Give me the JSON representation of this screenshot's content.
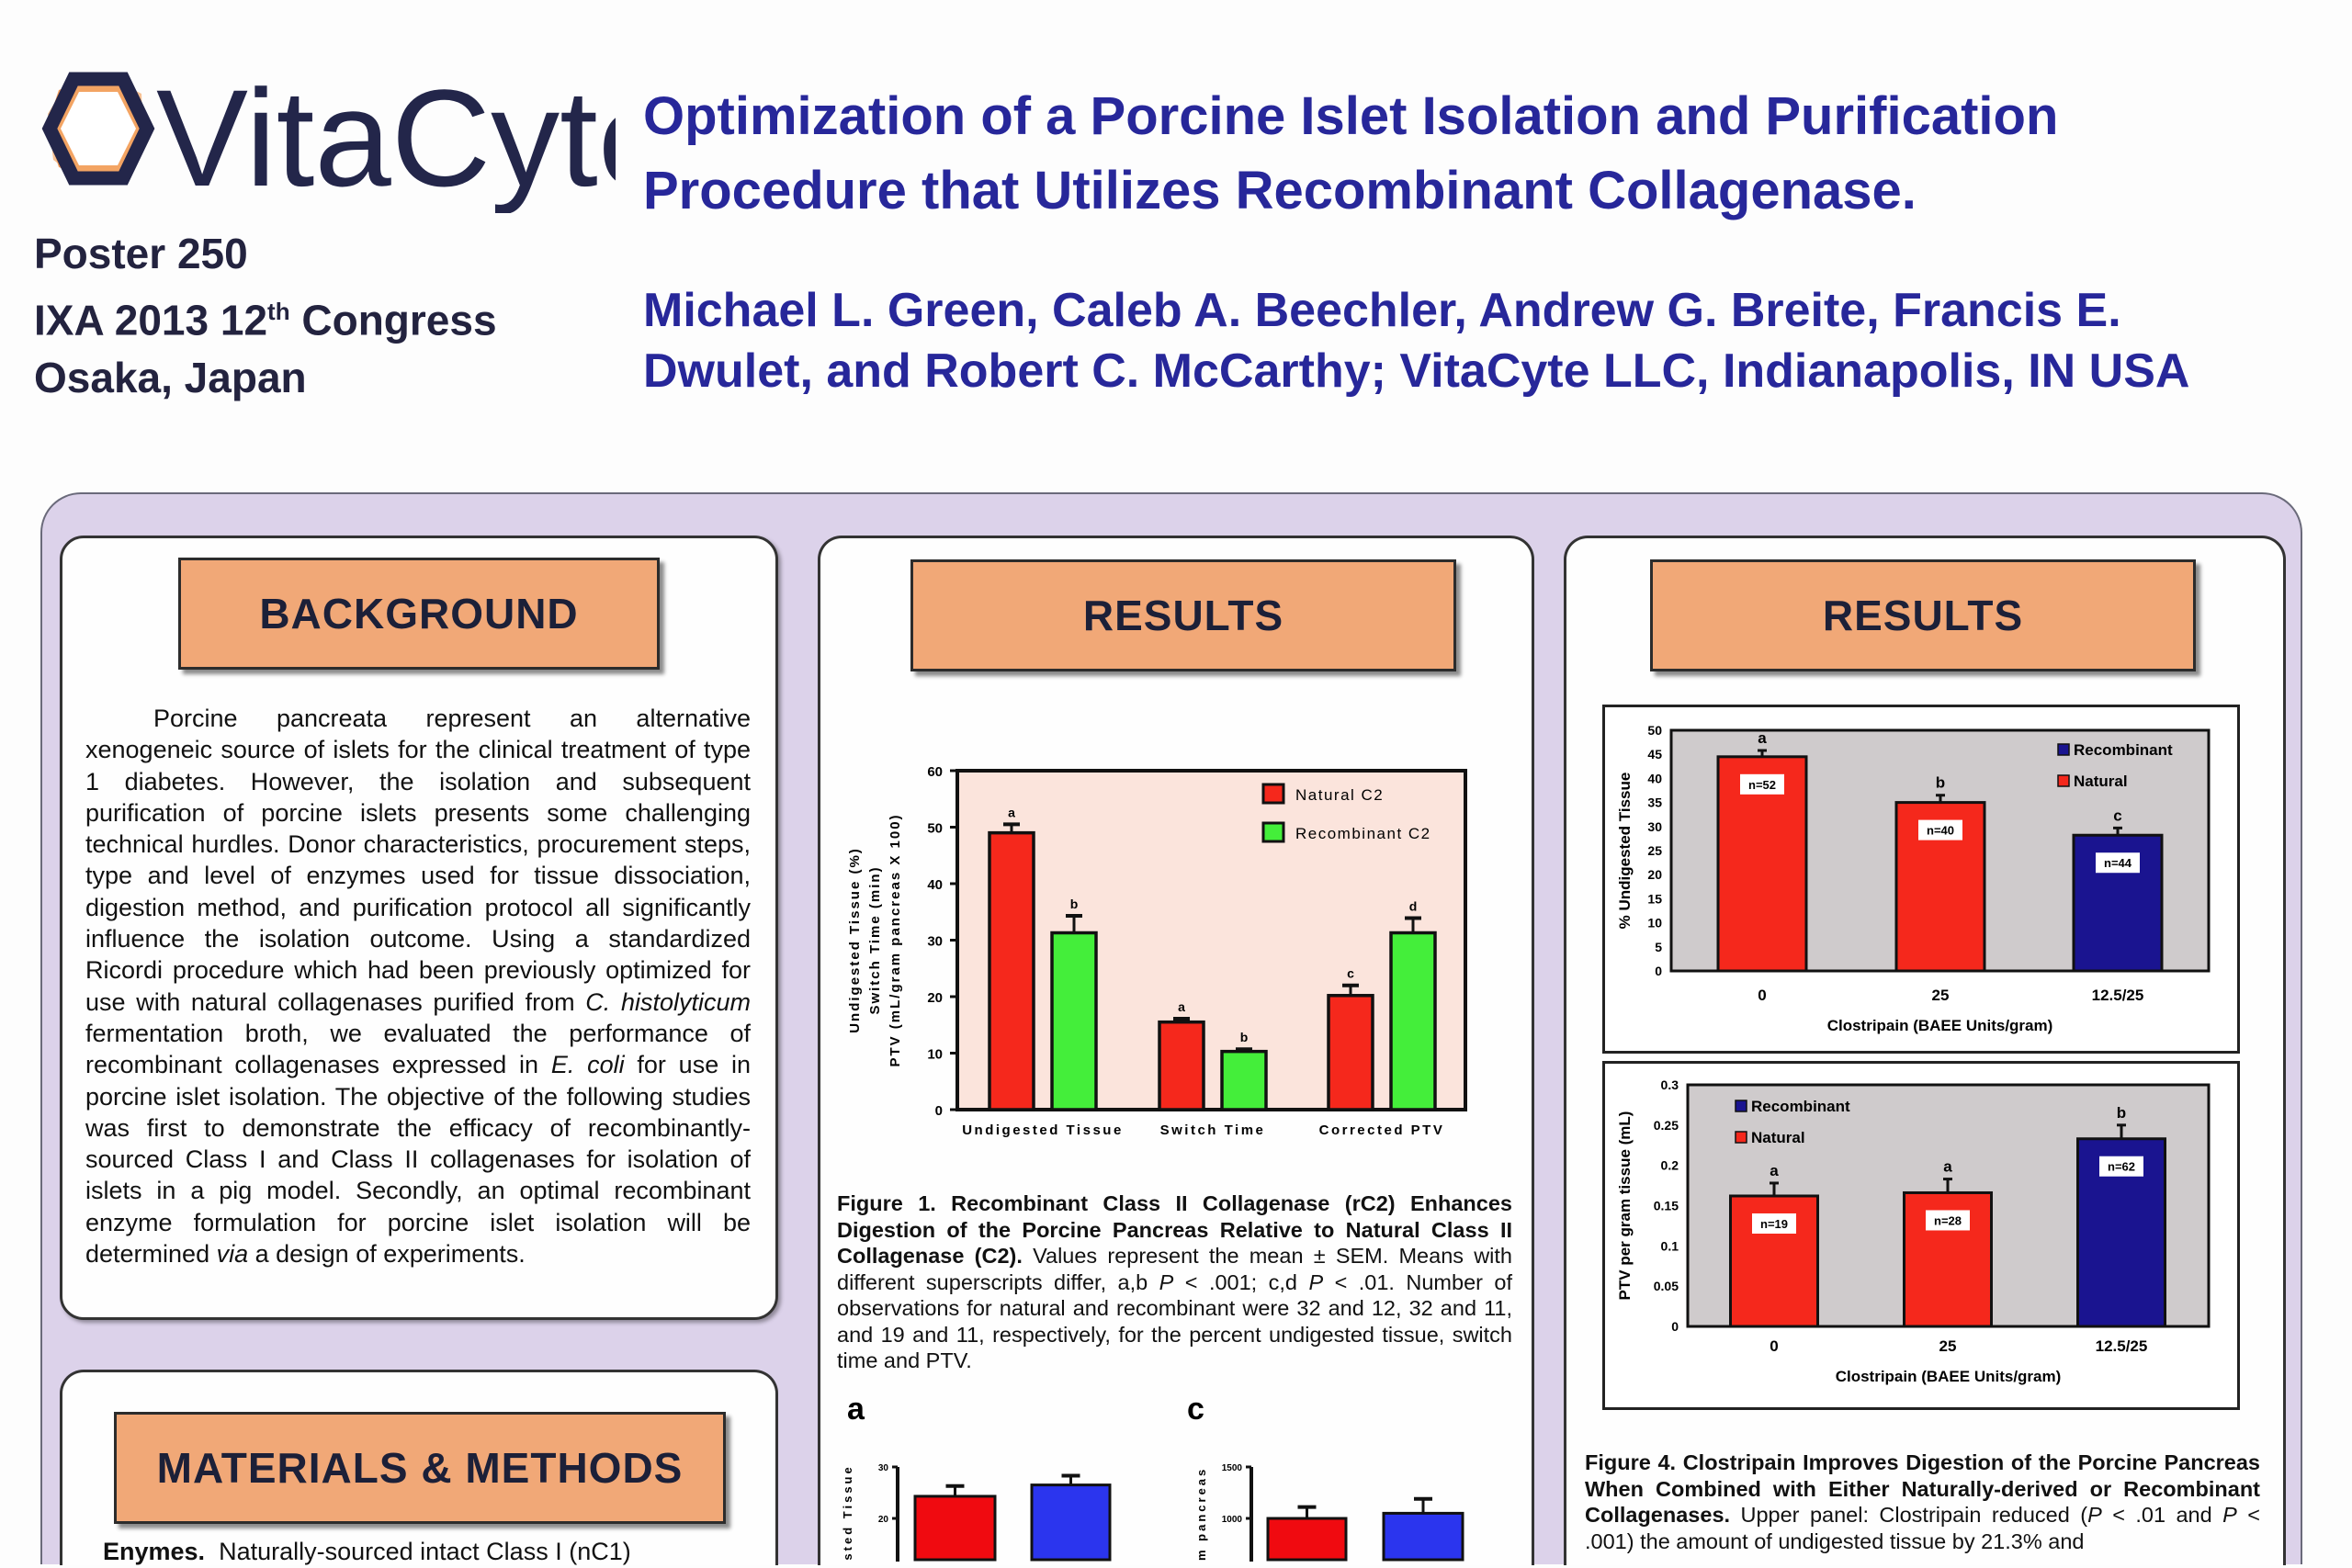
{
  "header": {
    "logo_text": "VitaCyte",
    "poster_number": "Poster 250",
    "congress_prefix": "IXA 2013 12",
    "congress_sup": "th",
    "congress_suffix": " Congress",
    "location": "Osaka, Japan",
    "title_lines": [
      "Optimization of a Porcine Islet Isolation and Purification",
      "Procedure that Utilizes Recombinant Collagenase."
    ],
    "author_lines": [
      "Michael L. Green, Caleb A. Beechler, Andrew G. Breite, Francis E.",
      "Dwulet, and Robert C. McCarthy; VitaCyte LLC, Indianapolis, IN USA"
    ]
  },
  "colors": {
    "title": "#27279a",
    "panel": "#dcd2ea",
    "section_header": "#f1a877",
    "natural": "#f5281c",
    "recombinant_green": "#44ee3a",
    "recombinant_blue": "#1a1490",
    "small_blue": "#2b35ee"
  },
  "background": {
    "heading": "BACKGROUND",
    "segments": [
      "Porcine pancreata represent an alternative xenogeneic source of islets for the clinical treatment of type 1 diabetes.  However, the isolation and subsequent purification of porcine islets presents some challenging technical hurdles.  Donor characteristics, procurement steps, type and level of enzymes used for tissue dissociation, digestion method, and purification protocol all significantly influence the isolation outcome. Using a standardized Ricordi procedure which had been previously optimized for use with natural collagenases purified from ",
      "C. histolyticum",
      " fermentation broth, we evaluated the performance of recombinant collagenases expressed in ",
      "E. coli",
      " for use in porcine islet isolation. The objective of the  following studies was first to demonstrate the efficacy of  recombinantly-sourced Class I and Class II collagenases  for isolation of islets in a pig model.  Secondly, an optimal recombinant enzyme formulation for porcine islet isolation will be determined ",
      "via",
      " a design of experiments."
    ]
  },
  "methods": {
    "heading": "MATERIALS & METHODS",
    "lead_bold": "Enymes.",
    "lead_text": "  Naturally-sourced intact Class I (nC1)"
  },
  "results_middle": {
    "heading": "RESULTS",
    "figure1_caption": {
      "bold": "Figure 1.  Recombinant Class II Collagenase (rC2) Enhances Digestion of the Porcine Pancreas Relative to Natural Class II Collagenase (C2).",
      "t1": " Values represent the mean ± SEM.  Means with different superscripts differ, a,b ",
      "p": "P",
      "t2": " < .001; c,d ",
      "t3": " < .01. Number of observations for natural and recombinant were 32 and 12, 32 and 11, and 19 and 11, respectively, for the percent undigested tissue, switch time and PTV."
    },
    "panel_a_label": "a",
    "panel_c_label": "c"
  },
  "results_right": {
    "heading": "RESULTS",
    "figure4_caption": {
      "bold": "Figure 4. Clostripain Improves Digestion of the Porcine Pancreas When Combined with Either Naturally-derived or Recombinant Collagenases.",
      "t1": "  Upper panel: Clostripain reduced (",
      "p": "P",
      "t2": " < .01 and ",
      "t3": " < .001) the amount of undigested tissue by 21.3% and"
    }
  },
  "chart_data": [
    {
      "id": "figure1",
      "type": "bar",
      "categories": [
        "Undigested Tissue",
        "Switch Time",
        "Corrected PTV"
      ],
      "series": [
        {
          "name": "Natural C2",
          "values": [
            49,
            15.5,
            20.2
          ],
          "errors": [
            1.5,
            0.6,
            1.8
          ],
          "letters": [
            "a",
            "a",
            "c"
          ]
        },
        {
          "name": "Recombinant C2",
          "values": [
            31.3,
            10.3,
            31.3
          ],
          "errors": [
            3.0,
            0.4,
            2.6
          ],
          "letters": [
            "b",
            "b",
            "d"
          ]
        }
      ],
      "ylabel_lines": [
        "Undigested Tissue (%)",
        "Switch Time (min)",
        "PTV (mL/gram pancreas X 100)"
      ],
      "ylim": [
        0,
        60
      ],
      "yticks": [
        0,
        10,
        20,
        30,
        40,
        50,
        60
      ],
      "legend": "top-right"
    },
    {
      "id": "figure4_upper",
      "type": "bar",
      "categories": [
        "0",
        "25",
        "12.5/25"
      ],
      "values": [
        44.5,
        35,
        28.2
      ],
      "errors": [
        1.3,
        1.5,
        1.5
      ],
      "letters": [
        "a",
        "b",
        "c"
      ],
      "n_labels": [
        "n=52",
        "n=40",
        "n=44"
      ],
      "bar_series": [
        "Natural",
        "Natural",
        "Recombinant"
      ],
      "legend_entries": [
        "Recombinant",
        "Natural"
      ],
      "legend": "top-right",
      "xlabel": "Clostripain (BAEE Units/gram)",
      "ylabel": "% Undigested Tissue",
      "ylim": [
        0,
        50
      ],
      "yticks": [
        "0",
        "5",
        "10",
        "15",
        "20",
        "25",
        "30",
        "35",
        "40",
        "45",
        "50"
      ]
    },
    {
      "id": "figure4_lower",
      "type": "bar",
      "categories": [
        "0",
        "25",
        "12.5/25"
      ],
      "values": [
        0.162,
        0.166,
        0.233
      ],
      "errors": [
        0.016,
        0.017,
        0.017
      ],
      "letters": [
        "a",
        "a",
        "b"
      ],
      "n_labels": [
        "n=19",
        "n=28",
        "n=62"
      ],
      "bar_series": [
        "Natural",
        "Natural",
        "Recombinant"
      ],
      "legend_entries": [
        "Recombinant",
        "Natural"
      ],
      "legend": "top-left",
      "xlabel": "Clostripain (BAEE Units/gram)",
      "ylabel": "PTV per gram tissue (mL)",
      "ylim": [
        0,
        0.3
      ],
      "yticks": [
        "0",
        "0.05",
        "0.1",
        "0.15",
        "0.2",
        "0.25",
        "0.3"
      ]
    },
    {
      "id": "panel_a",
      "type": "bar",
      "values": [
        24.3,
        26.5
      ],
      "errors": [
        2.0,
        1.8
      ],
      "ylabel": "Undigested Tissue",
      "ylabel_visible": "gested Tissue",
      "yticks": [
        "20",
        "30"
      ],
      "ylim": [
        0,
        30
      ]
    },
    {
      "id": "panel_c",
      "type": "bar",
      "values": [
        1000,
        1050
      ],
      "errors": [
        110,
        140
      ],
      "ylabel_visible": "ram pancreas",
      "yticks": [
        "1000",
        "1500"
      ],
      "ylim": [
        0,
        1500
      ]
    }
  ]
}
